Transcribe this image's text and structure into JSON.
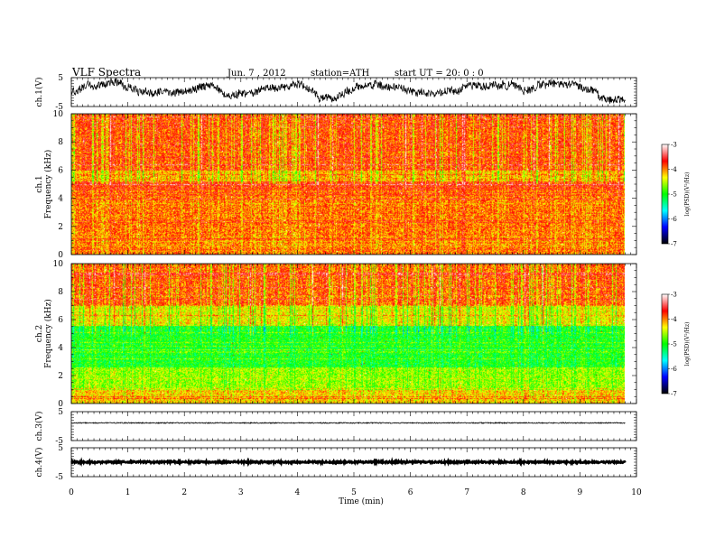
{
  "header": {
    "title": "VLF  Spectra",
    "date": "Jun. 7  , 2012",
    "station": "station=ATH",
    "start": "start  UT  =    20: 0  : 0"
  },
  "chart_data": {
    "type": "heatmap",
    "x": {
      "label": "Time  (min)",
      "range": [
        0,
        10
      ],
      "ticks": [
        "0",
        "1",
        "2",
        "3",
        "4",
        "5",
        "6",
        "7",
        "8",
        "9",
        "10"
      ],
      "data_end": 9.8
    },
    "waveform_panels": [
      {
        "id": "ch1",
        "ylabel": "ch.1(V)",
        "yrange": [
          -5,
          5
        ],
        "ticks": [
          "5",
          "-5"
        ],
        "style": "noisy"
      },
      {
        "id": "ch3",
        "ylabel": "ch.3(V)",
        "yrange": [
          -5,
          5
        ],
        "ticks": [
          "5",
          "-5"
        ],
        "style": "flat"
      },
      {
        "id": "ch4",
        "ylabel": "ch.4(V)",
        "yrange": [
          -5,
          5
        ],
        "ticks": [
          "5",
          "-5"
        ],
        "style": "thick"
      }
    ],
    "spectrogram_panels": [
      {
        "id": "ch1",
        "ylabel_channel": "ch.1",
        "ylabel": "Frequency  (kHz)",
        "yrange": [
          0,
          10
        ],
        "ticks": [
          "0",
          "2",
          "4",
          "6",
          "8",
          "10"
        ],
        "colorbar": {
          "label": "log(PSD)(V²/Hz)",
          "range": [
            -7,
            -3
          ],
          "ticks": [
            "-3",
            "-4",
            "-5",
            "-6",
            "-7"
          ]
        }
      },
      {
        "id": "ch2",
        "ylabel_channel": "ch.2",
        "ylabel": "Frequency  (kHz)",
        "yrange": [
          0,
          10
        ],
        "ticks": [
          "0",
          "2",
          "4",
          "6",
          "8",
          "10"
        ],
        "colorbar": {
          "label": "log(PSD)(V²/Hz)",
          "range": [
            -7,
            -3
          ],
          "ticks": [
            "-3",
            "-4",
            "-5",
            "-6",
            "-7"
          ]
        }
      }
    ],
    "colormap": [
      "#000000",
      "#0000ff",
      "#00ffff",
      "#00ff00",
      "#ffff00",
      "#ff0000",
      "#ffffff"
    ]
  }
}
